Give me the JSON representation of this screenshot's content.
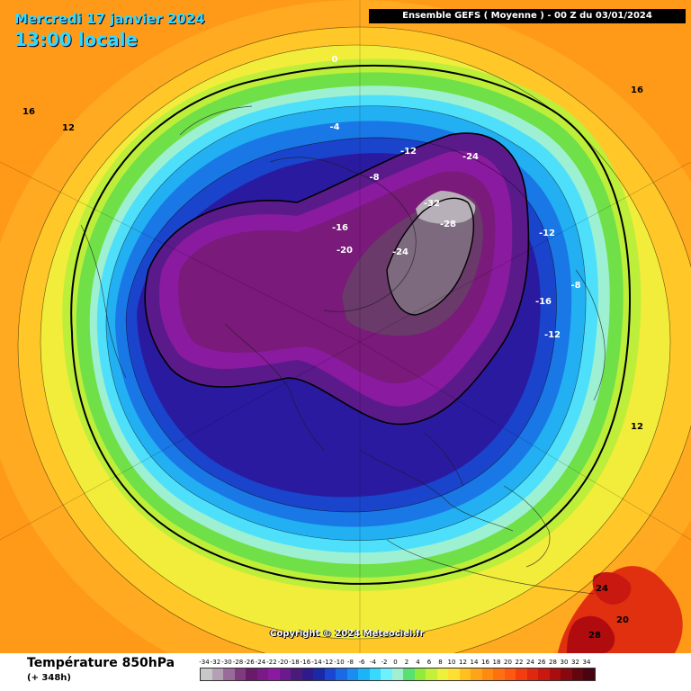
{
  "header": {
    "date": "Mercredi 17 janvier 2024",
    "local_time": "13:00 locale",
    "run_info": "Ensemble GEFS  ( Moyenne )  -  00 Z du 03/01/2024"
  },
  "copyright": "Copyright © 2024 Meteociel.fr",
  "footer": {
    "title": "Température 850hPa",
    "lead": "(+ 348h)"
  },
  "legend": {
    "values": [
      "-34",
      "-32",
      "-30",
      "-28",
      "-26",
      "-24",
      "-22",
      "-20",
      "-18",
      "-16",
      "-14",
      "-12",
      "-10",
      "-8",
      "-6",
      "-4",
      "-2",
      "0",
      "2",
      "4",
      "6",
      "8",
      "10",
      "12",
      "14",
      "16",
      "18",
      "20",
      "22",
      "24",
      "26",
      "28",
      "30",
      "32",
      "34"
    ],
    "colors": [
      "#c8c8c8",
      "#b4a0b4",
      "#9a6a9a",
      "#7e3c7e",
      "#6a1a6a",
      "#7a1a86",
      "#8c1aa0",
      "#6a1a8c",
      "#4a1a78",
      "#2e1a8c",
      "#1a2aa6",
      "#1a46d2",
      "#1a6ae6",
      "#1a8ef0",
      "#1ab4f8",
      "#38d8ff",
      "#6ef0ff",
      "#a0f0d0",
      "#58e070",
      "#90ec3a",
      "#c4f03a",
      "#eef03a",
      "#ffe030",
      "#ffc020",
      "#ffa418",
      "#ff8a10",
      "#ff7010",
      "#ff5810",
      "#f43c10",
      "#e02810",
      "#c81810",
      "#aa0c10",
      "#880810",
      "#640610",
      "#480410"
    ]
  },
  "map_labels": [
    {
      "text": "0"
    },
    {
      "text": "-4"
    },
    {
      "text": "-8"
    },
    {
      "text": "-12"
    },
    {
      "text": "-24"
    },
    {
      "text": "-32"
    },
    {
      "text": "-28"
    },
    {
      "text": "-16"
    },
    {
      "text": "-20"
    },
    {
      "text": "-24"
    },
    {
      "text": "-12"
    },
    {
      "text": "-16"
    },
    {
      "text": "-8"
    },
    {
      "text": "-12"
    },
    {
      "text": "16"
    },
    {
      "text": "12"
    },
    {
      "text": "16"
    },
    {
      "text": "12"
    },
    {
      "text": "24"
    },
    {
      "text": "28"
    },
    {
      "text": "20"
    }
  ],
  "colors": {
    "header_text": "#2fd9ff",
    "run_box_bg": "#000000",
    "run_box_text": "#ffffff",
    "contour": "#000000"
  }
}
